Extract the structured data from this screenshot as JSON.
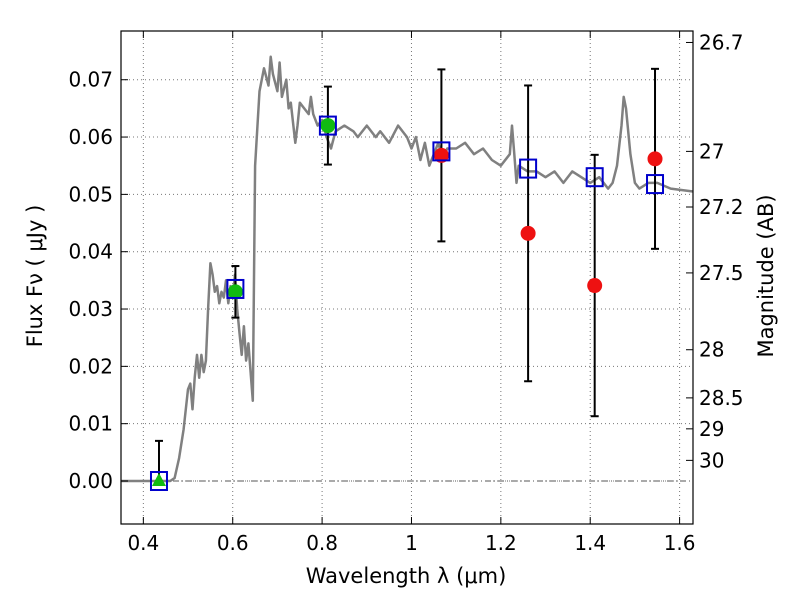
{
  "chart_data": {
    "type": "scatter",
    "xlabel": "Wavelength  λ (μm)",
    "ylabel": "Flux  Fν  ( μJy )",
    "y2label": "Magnitude (AB)",
    "xlim": [
      0.35,
      1.63
    ],
    "ylim": [
      -0.0075,
      0.0785
    ],
    "x_ticks": [
      0.4,
      0.6,
      0.8,
      1.0,
      1.2,
      1.4,
      1.6
    ],
    "x_tick_labels": [
      "0.4",
      "0.6",
      "0.8",
      "1",
      "1.2",
      "1.4",
      "1.6"
    ],
    "y_ticks": [
      0.0,
      0.01,
      0.02,
      0.03,
      0.04,
      0.05,
      0.06,
      0.07
    ],
    "y_tick_labels": [
      "0.00",
      "0.01",
      "0.02",
      "0.03",
      "0.04",
      "0.05",
      "0.06",
      "0.07"
    ],
    "right_ticks": [
      {
        "label": "26.7",
        "flux": 0.0765
      },
      {
        "label": "27",
        "flux": 0.0575
      },
      {
        "label": "27.2",
        "flux": 0.0478
      },
      {
        "label": "27.5",
        "flux": 0.0363
      },
      {
        "label": "28",
        "flux": 0.0229
      },
      {
        "label": "28.5",
        "flux": 0.0145
      },
      {
        "label": "29",
        "flux": 0.0091
      },
      {
        "label": "30",
        "flux": 0.0036
      }
    ],
    "grid": true,
    "zero_line": true,
    "colors": {
      "model": "#808080",
      "square": "#0000cc",
      "green": "#11bb11",
      "red": "#ee1111",
      "errorbar": "#000000",
      "grid": "#777777"
    },
    "model_spectrum": {
      "x": [
        0.35,
        0.46,
        0.47,
        0.48,
        0.49,
        0.5,
        0.505,
        0.51,
        0.515,
        0.52,
        0.525,
        0.53,
        0.535,
        0.54,
        0.545,
        0.55,
        0.555,
        0.56,
        0.565,
        0.57,
        0.575,
        0.58,
        0.585,
        0.59,
        0.595,
        0.6,
        0.605,
        0.61,
        0.615,
        0.62,
        0.625,
        0.63,
        0.635,
        0.64,
        0.645,
        0.65,
        0.66,
        0.67,
        0.68,
        0.685,
        0.69,
        0.7,
        0.705,
        0.71,
        0.72,
        0.725,
        0.73,
        0.74,
        0.745,
        0.75,
        0.76,
        0.77,
        0.775,
        0.78,
        0.79,
        0.8,
        0.81,
        0.82,
        0.83,
        0.85,
        0.87,
        0.88,
        0.9,
        0.92,
        0.93,
        0.95,
        0.97,
        0.99,
        1.0,
        1.01,
        1.02,
        1.03,
        1.04,
        1.06,
        1.07,
        1.08,
        1.1,
        1.12,
        1.14,
        1.16,
        1.18,
        1.2,
        1.22,
        1.225,
        1.23,
        1.235,
        1.24,
        1.26,
        1.28,
        1.3,
        1.32,
        1.34,
        1.36,
        1.38,
        1.4,
        1.42,
        1.44,
        1.45,
        1.46,
        1.47,
        1.475,
        1.48,
        1.49,
        1.5,
        1.51,
        1.53,
        1.55,
        1.58,
        1.63
      ],
      "y": [
        0.0,
        0.0,
        0.0005,
        0.004,
        0.009,
        0.016,
        0.017,
        0.0125,
        0.018,
        0.022,
        0.018,
        0.022,
        0.019,
        0.021,
        0.03,
        0.038,
        0.036,
        0.033,
        0.034,
        0.031,
        0.033,
        0.032,
        0.035,
        0.031,
        0.034,
        0.032,
        0.036,
        0.03,
        0.026,
        0.022,
        0.027,
        0.021,
        0.024,
        0.019,
        0.014,
        0.055,
        0.068,
        0.072,
        0.069,
        0.074,
        0.071,
        0.068,
        0.073,
        0.067,
        0.07,
        0.065,
        0.066,
        0.059,
        0.062,
        0.066,
        0.065,
        0.064,
        0.067,
        0.064,
        0.062,
        0.063,
        0.06,
        0.058,
        0.061,
        0.062,
        0.061,
        0.06,
        0.062,
        0.06,
        0.061,
        0.059,
        0.062,
        0.06,
        0.058,
        0.06,
        0.056,
        0.059,
        0.055,
        0.059,
        0.056,
        0.058,
        0.058,
        0.059,
        0.057,
        0.058,
        0.056,
        0.055,
        0.057,
        0.062,
        0.057,
        0.052,
        0.055,
        0.054,
        0.054,
        0.053,
        0.054,
        0.052,
        0.054,
        0.053,
        0.052,
        0.053,
        0.051,
        0.052,
        0.055,
        0.062,
        0.067,
        0.065,
        0.057,
        0.052,
        0.051,
        0.052,
        0.052,
        0.051,
        0.0505
      ]
    },
    "synthetic_photometry": {
      "x": [
        0.435,
        0.606,
        0.813,
        1.067,
        1.261,
        1.41,
        1.545
      ],
      "y": [
        0.0,
        0.0335,
        0.062,
        0.0575,
        0.0545,
        0.053,
        0.0518
      ]
    },
    "observed_detections": {
      "x": [
        0.606,
        0.813
      ],
      "y": [
        0.033,
        0.062
      ],
      "yerr": [
        0.0045,
        0.0068
      ]
    },
    "observed_upper_limit": {
      "x": [
        0.435
      ],
      "y": [
        0.0
      ],
      "yerr": [
        0.007
      ]
    },
    "observed_nondetections": {
      "x": [
        1.067,
        1.261,
        1.41,
        1.545
      ],
      "y": [
        0.0568,
        0.0432,
        0.0341,
        0.0562
      ],
      "yerr_low": [
        0.015,
        0.0258,
        0.0228,
        0.0157
      ],
      "yerr_high": [
        0.015,
        0.0258,
        0.0228,
        0.0157
      ]
    }
  }
}
